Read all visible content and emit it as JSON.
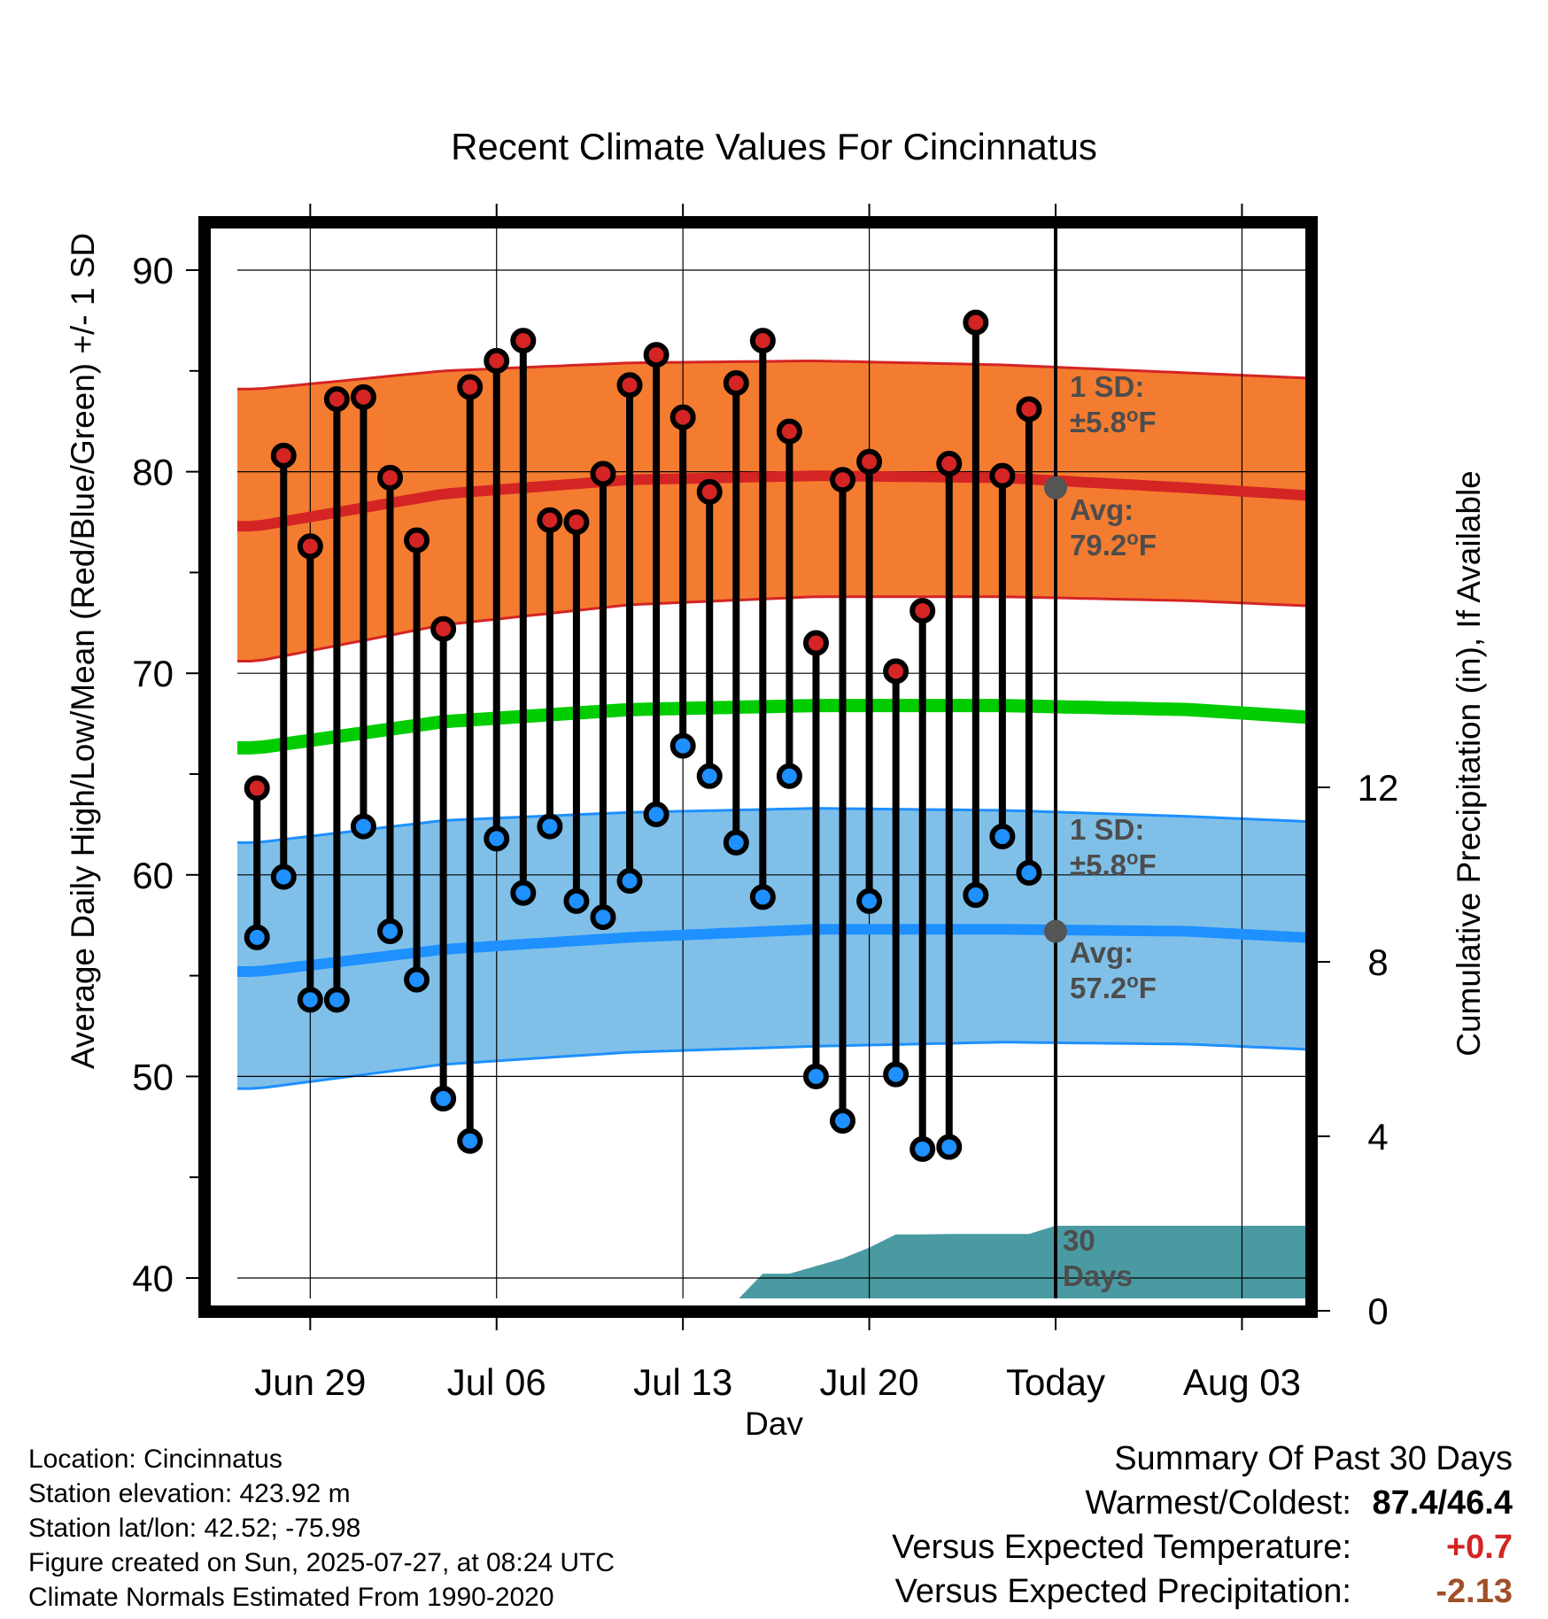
{
  "chart_data": {
    "type": "line",
    "title": "Recent Climate Values For Cincinnatus",
    "xlabel": "Day",
    "ylabel": "Average Daily High/Low/Mean (Red/Blue/Green) +/- 1 SD",
    "y2label": "Cumulative Precipitation (in), If Available",
    "ylim": [
      38.8,
      92.6
    ],
    "y2lim": [
      0,
      18
    ],
    "x_tick_labels": [
      "Jun 29",
      "Jul 06",
      "Jul 13",
      "Jul 20",
      "Today",
      "Aug 03"
    ],
    "y_ticks": [
      40,
      50,
      60,
      70,
      80,
      90
    ],
    "y2_ticks": [
      0,
      4,
      8,
      12
    ],
    "today_marker": {
      "day": "Today",
      "avg_high_text": "Avg:\n79.2°F",
      "avg_low_text": "Avg:\n57.2°F",
      "avg_high": 79.2,
      "avg_low": 57.2
    },
    "band_labels": {
      "high_sd": "1 SD:\n±5.8°F",
      "low_sd": "1 SD:\n±5.8°F",
      "precip": "30\nDays"
    },
    "colors": {
      "high_band": "#f47c30",
      "high_avg": "#d42424",
      "low_band": "#80c0e8",
      "low_avg": "#1e90ff",
      "mean_avg": "#00cc00",
      "precip": "#4a9aa2",
      "high_point": "#d42424",
      "low_point": "#1e90ff"
    },
    "normals": {
      "day_offsets": [
        -30,
        -23,
        -16,
        -9,
        -2,
        5,
        12
      ],
      "high_avg": [
        77.3,
        78.9,
        79.6,
        79.8,
        79.7,
        79.2,
        78.6
      ],
      "high_upper": [
        84.1,
        85.0,
        85.4,
        85.5,
        85.3,
        84.9,
        84.5
      ],
      "high_lower": [
        70.6,
        72.4,
        73.4,
        73.8,
        73.8,
        73.6,
        73.2
      ],
      "low_avg": [
        55.2,
        56.3,
        56.9,
        57.3,
        57.3,
        57.2,
        56.7
      ],
      "low_upper": [
        61.6,
        62.7,
        63.1,
        63.3,
        63.2,
        62.9,
        62.5
      ],
      "low_lower": [
        49.4,
        50.6,
        51.2,
        51.5,
        51.7,
        51.6,
        51.2
      ],
      "mean_avg": [
        66.3,
        67.6,
        68.2,
        68.4,
        68.4,
        68.2,
        67.6
      ]
    },
    "daily_days": [
      -30,
      -29,
      -28,
      -27,
      -26,
      -25,
      -24,
      -23,
      -22,
      -21,
      -20,
      -19,
      -18,
      -17,
      -16,
      -15,
      -14,
      -13,
      -12,
      -11,
      -10,
      -9,
      -8,
      -7,
      -6,
      -5,
      -4,
      -3,
      -2,
      -1
    ],
    "daily_high": [
      64.3,
      80.8,
      76.3,
      83.6,
      83.7,
      79.7,
      76.6,
      72.2,
      84.2,
      85.5,
      86.5,
      77.6,
      77.5,
      79.9,
      84.3,
      85.8,
      82.7,
      79.0,
      84.4,
      86.5,
      82.0,
      71.5,
      79.6,
      80.5,
      70.1,
      73.1,
      80.4,
      87.4,
      79.8,
      83.1
    ],
    "daily_low": [
      56.9,
      59.9,
      53.8,
      53.8,
      62.4,
      57.2,
      54.8,
      48.9,
      46.8,
      61.8,
      59.1,
      62.4,
      58.7,
      57.9,
      59.7,
      63.0,
      66.4,
      64.9,
      61.6,
      58.9,
      64.9,
      50.0,
      47.8,
      58.7,
      50.1,
      46.4,
      46.5,
      59.0,
      61.9,
      60.1
    ],
    "precip_days": [
      -31,
      -27,
      -26,
      -19,
      -18,
      -15,
      -14,
      -12,
      -11,
      -10,
      -8,
      -7,
      -6,
      -5,
      -4,
      -1,
      0,
      10
    ],
    "precip_cum": [
      0.0,
      0.0,
      0.18,
      0.22,
      0.22,
      0.22,
      0.22,
      0.22,
      0.85,
      0.85,
      1.2,
      1.45,
      1.75,
      1.75,
      1.76,
      1.76,
      1.95,
      1.95
    ]
  },
  "footer": {
    "location": "Location: Cincinnatus",
    "elevation": "Station elevation: 423.92 m",
    "latlon": "Station lat/lon: 42.52; -75.98",
    "created": "Figure created on Sun, 2025-07-27, at 08:24 UTC",
    "normals": "Climate Normals Estimated From 1990-2020"
  },
  "summary": {
    "heading": "Summary Of Past 30 Days",
    "warm_cold_label": "Warmest/Coldest:",
    "warm_cold_value": "87.4/46.4",
    "temp_label": "Versus Expected Temperature:",
    "temp_value": "+0.7",
    "temp_color": "#d42424",
    "precip_label": "Versus Expected Precipitation:",
    "precip_value": "-2.13",
    "precip_color": "#a05028"
  }
}
